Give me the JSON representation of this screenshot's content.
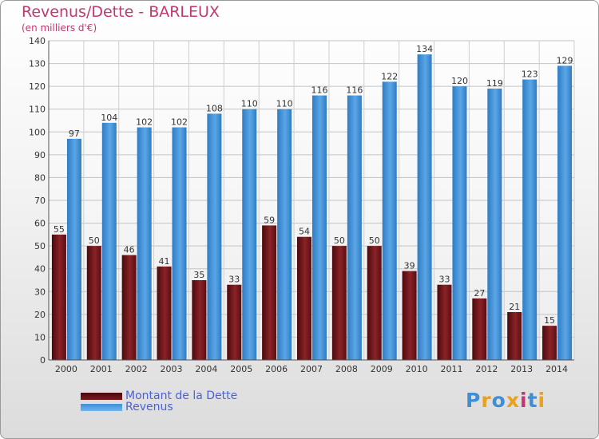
{
  "chart_data": {
    "type": "bar",
    "title": "Revenus/Dette - BARLEUX",
    "subtitle": "(en milliers d'€)",
    "categories": [
      "2000",
      "2001",
      "2002",
      "2003",
      "2004",
      "2005",
      "2006",
      "2007",
      "2008",
      "2009",
      "2010",
      "2011",
      "2012",
      "2013",
      "2014"
    ],
    "series": [
      {
        "name": "Montant de la Dette",
        "color": "#7a1a1e",
        "values": [
          55,
          50,
          46,
          41,
          35,
          33,
          59,
          54,
          50,
          50,
          39,
          33,
          27,
          21,
          15
        ]
      },
      {
        "name": "Revenus",
        "color": "#3d8fd6",
        "values": [
          97,
          104,
          102,
          102,
          108,
          110,
          110,
          116,
          116,
          122,
          134,
          120,
          119,
          123,
          129
        ]
      }
    ],
    "ylim": [
      0,
      140
    ],
    "yticks": [
      0,
      10,
      20,
      30,
      40,
      50,
      60,
      70,
      80,
      90,
      100,
      110,
      120,
      130,
      140
    ],
    "grid": true,
    "legend_position": "bottom-left"
  },
  "brand": {
    "text": "Proxiti",
    "colors": [
      "#3d8fd6",
      "#e8a21d",
      "#3d8fd6",
      "#e8a21d",
      "#c0386e",
      "#3d8fd6",
      "#e8a21d"
    ]
  }
}
